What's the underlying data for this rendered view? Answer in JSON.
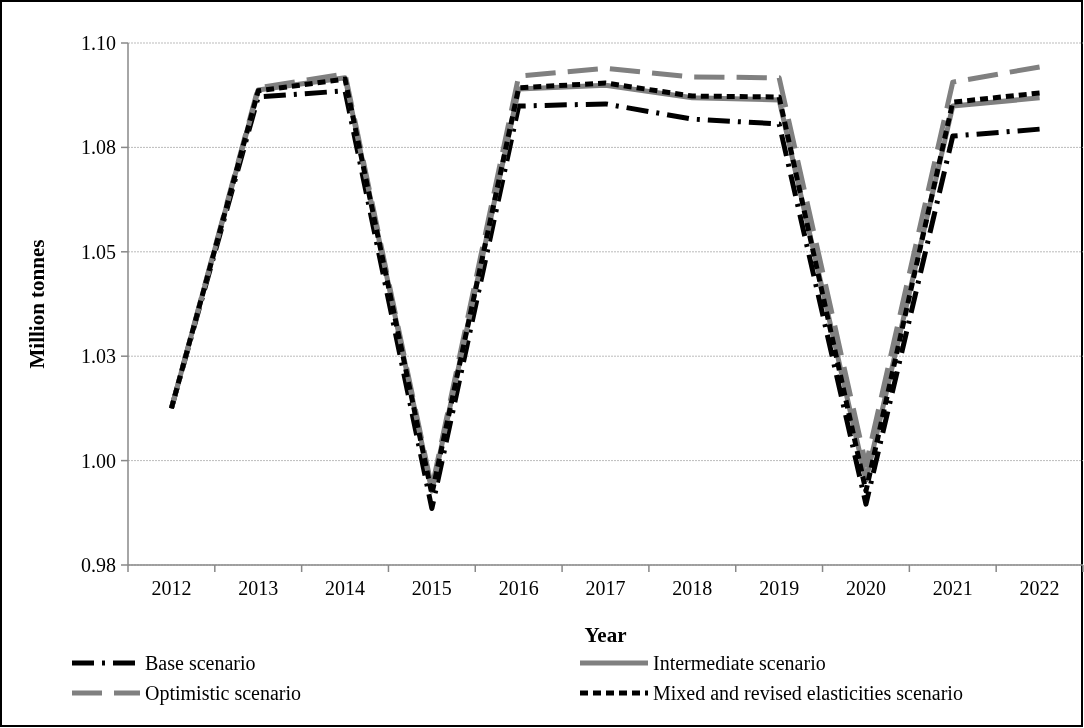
{
  "chart_data": {
    "type": "line",
    "xlabel": "Year",
    "ylabel": "Million tonnes",
    "categories": [
      "2012",
      "2013",
      "2014",
      "2015",
      "2016",
      "2017",
      "2018",
      "2019",
      "2020",
      "2021",
      "2022"
    ],
    "series": [
      {
        "name": "Base scenario",
        "color": "#000000",
        "line_style": "dashed",
        "values": [
          1.016,
          1.0876,
          1.089,
          0.993,
          1.0855,
          1.086,
          1.0825,
          1.0814,
          0.994,
          1.0786,
          1.0802
        ]
      },
      {
        "name": "Intermediate scenario",
        "color": "#808080",
        "line_style": "solid",
        "values": [
          1.016,
          1.0892,
          1.092,
          0.997,
          1.0894,
          1.0903,
          1.0874,
          1.0869,
          0.9995,
          1.0855,
          1.0874
        ]
      },
      {
        "name": "Optimistic scenario",
        "color": "#808080",
        "line_style": "dashed",
        "values": [
          1.016,
          1.0897,
          1.0929,
          0.9977,
          1.0924,
          1.0942,
          1.0922,
          1.092,
          1.003,
          1.091,
          1.0945
        ]
      },
      {
        "name": "Mixed and revised elasticities scenario",
        "color": "#000000",
        "line_style": "dashed",
        "values": [
          1.016,
          1.089,
          1.0917,
          0.9963,
          1.0897,
          1.0908,
          1.0878,
          1.0876,
          0.997,
          1.0864,
          1.0885
        ]
      }
    ],
    "ylim": [
      0.98,
      1.1
    ],
    "yticks": [
      {
        "value": 0.98,
        "label": "0.98"
      },
      {
        "value": 1.004,
        "label": "1.00"
      },
      {
        "value": 1.028,
        "label": "1.03"
      },
      {
        "value": 1.052,
        "label": "1.05"
      },
      {
        "value": 1.076,
        "label": "1.08"
      },
      {
        "value": 1.1,
        "label": "1.10"
      }
    ],
    "grid": "y",
    "legend": "bottom"
  }
}
